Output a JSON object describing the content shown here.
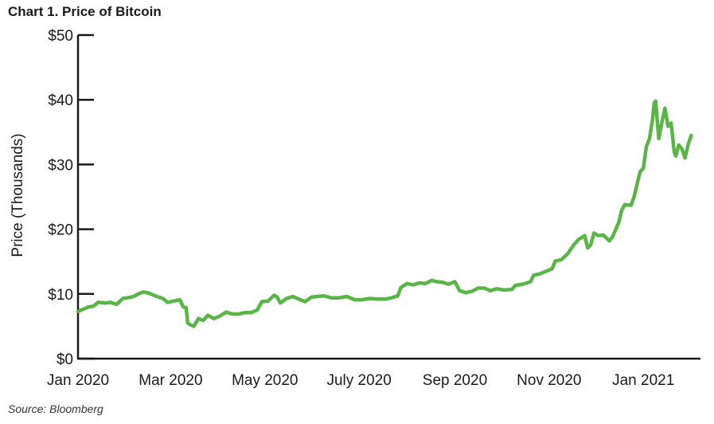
{
  "chart_data": {
    "type": "line",
    "title": "Chart 1. Price of Bitcoin",
    "ylabel": "Price (Thousands)",
    "xlabel": "",
    "source": "Source: Bloomberg",
    "ylim": [
      0,
      50
    ],
    "y_ticks": [
      {
        "value": 0,
        "label": "$0"
      },
      {
        "value": 10,
        "label": "$10"
      },
      {
        "value": 20,
        "label": "$20"
      },
      {
        "value": 30,
        "label": "$30"
      },
      {
        "value": 40,
        "label": "$40"
      },
      {
        "value": 50,
        "label": "$50"
      }
    ],
    "x_ticks": [
      {
        "value": "2020-01-01",
        "label": "Jan 2020"
      },
      {
        "value": "2020-03-01",
        "label": "Mar 2020"
      },
      {
        "value": "2020-05-01",
        "label": "May 2020"
      },
      {
        "value": "2020-07-01",
        "label": "July 2020"
      },
      {
        "value": "2020-09-01",
        "label": "Sep 2020"
      },
      {
        "value": "2020-11-01",
        "label": "Nov 2020"
      },
      {
        "value": "2021-01-01",
        "label": "Jan 2021"
      }
    ],
    "xlim": [
      "2020-01-01",
      "2021-02-07"
    ],
    "series": [
      {
        "color": "#5ab547",
        "points": [
          [
            "2020-01-01",
            7.3
          ],
          [
            "2020-01-04",
            7.6
          ],
          [
            "2020-01-08",
            8.0
          ],
          [
            "2020-01-11",
            8.1
          ],
          [
            "2020-01-14",
            8.7
          ],
          [
            "2020-01-19",
            8.6
          ],
          [
            "2020-01-22",
            8.7
          ],
          [
            "2020-01-26",
            8.4
          ],
          [
            "2020-01-30",
            9.3
          ],
          [
            "2020-02-02",
            9.4
          ],
          [
            "2020-02-06",
            9.6
          ],
          [
            "2020-02-09",
            10.0
          ],
          [
            "2020-02-12",
            10.3
          ],
          [
            "2020-02-15",
            10.2
          ],
          [
            "2020-02-18",
            9.9
          ],
          [
            "2020-02-21",
            9.6
          ],
          [
            "2020-02-25",
            9.3
          ],
          [
            "2020-02-28",
            8.7
          ],
          [
            "2020-03-03",
            8.9
          ],
          [
            "2020-03-07",
            9.1
          ],
          [
            "2020-03-09",
            8.0
          ],
          [
            "2020-03-11",
            7.9
          ],
          [
            "2020-03-12",
            5.5
          ],
          [
            "2020-03-14",
            5.2
          ],
          [
            "2020-03-16",
            5.0
          ],
          [
            "2020-03-19",
            6.2
          ],
          [
            "2020-03-22",
            5.9
          ],
          [
            "2020-03-25",
            6.7
          ],
          [
            "2020-03-29",
            6.2
          ],
          [
            "2020-04-02",
            6.6
          ],
          [
            "2020-04-06",
            7.2
          ],
          [
            "2020-04-10",
            6.9
          ],
          [
            "2020-04-14",
            6.9
          ],
          [
            "2020-04-18",
            7.1
          ],
          [
            "2020-04-22",
            7.1
          ],
          [
            "2020-04-26",
            7.5
          ],
          [
            "2020-04-29",
            8.8
          ],
          [
            "2020-05-03",
            8.9
          ],
          [
            "2020-05-07",
            9.8
          ],
          [
            "2020-05-09",
            9.5
          ],
          [
            "2020-05-11",
            8.6
          ],
          [
            "2020-05-15",
            9.3
          ],
          [
            "2020-05-19",
            9.6
          ],
          [
            "2020-05-23",
            9.2
          ],
          [
            "2020-05-27",
            8.8
          ],
          [
            "2020-05-31",
            9.5
          ],
          [
            "2020-06-04",
            9.6
          ],
          [
            "2020-06-08",
            9.7
          ],
          [
            "2020-06-13",
            9.4
          ],
          [
            "2020-06-18",
            9.4
          ],
          [
            "2020-06-23",
            9.6
          ],
          [
            "2020-06-28",
            9.1
          ],
          [
            "2020-07-03",
            9.1
          ],
          [
            "2020-07-08",
            9.3
          ],
          [
            "2020-07-13",
            9.2
          ],
          [
            "2020-07-18",
            9.2
          ],
          [
            "2020-07-22",
            9.4
          ],
          [
            "2020-07-26",
            9.7
          ],
          [
            "2020-07-28",
            11.0
          ],
          [
            "2020-08-01",
            11.6
          ],
          [
            "2020-08-05",
            11.4
          ],
          [
            "2020-08-09",
            11.7
          ],
          [
            "2020-08-13",
            11.6
          ],
          [
            "2020-08-17",
            12.1
          ],
          [
            "2020-08-20",
            11.9
          ],
          [
            "2020-08-24",
            11.8
          ],
          [
            "2020-08-28",
            11.5
          ],
          [
            "2020-09-01",
            11.9
          ],
          [
            "2020-09-04",
            10.5
          ],
          [
            "2020-09-08",
            10.2
          ],
          [
            "2020-09-12",
            10.4
          ],
          [
            "2020-09-16",
            10.9
          ],
          [
            "2020-09-20",
            10.9
          ],
          [
            "2020-09-24",
            10.5
          ],
          [
            "2020-09-28",
            10.8
          ],
          [
            "2020-10-03",
            10.6
          ],
          [
            "2020-10-08",
            10.7
          ],
          [
            "2020-10-10",
            11.3
          ],
          [
            "2020-10-15",
            11.5
          ],
          [
            "2020-10-20",
            11.9
          ],
          [
            "2020-10-22",
            12.9
          ],
          [
            "2020-10-26",
            13.1
          ],
          [
            "2020-10-30",
            13.5
          ],
          [
            "2020-11-03",
            13.9
          ],
          [
            "2020-11-05",
            15.1
          ],
          [
            "2020-11-09",
            15.3
          ],
          [
            "2020-11-13",
            16.2
          ],
          [
            "2020-11-17",
            17.6
          ],
          [
            "2020-11-20",
            18.4
          ],
          [
            "2020-11-24",
            19.0
          ],
          [
            "2020-11-26",
            17.1
          ],
          [
            "2020-11-28",
            17.6
          ],
          [
            "2020-11-30",
            19.4
          ],
          [
            "2020-12-03",
            19.0
          ],
          [
            "2020-12-06",
            19.1
          ],
          [
            "2020-12-10",
            18.2
          ],
          [
            "2020-12-12",
            18.8
          ],
          [
            "2020-12-16",
            21.0
          ],
          [
            "2020-12-18",
            22.9
          ],
          [
            "2020-12-20",
            23.8
          ],
          [
            "2020-12-24",
            23.7
          ],
          [
            "2020-12-26",
            25.0
          ],
          [
            "2020-12-28",
            27.0
          ],
          [
            "2020-12-30",
            28.9
          ],
          [
            "2021-01-01",
            29.4
          ],
          [
            "2021-01-03",
            32.8
          ],
          [
            "2021-01-05",
            34.0
          ],
          [
            "2021-01-07",
            37.0
          ],
          [
            "2021-01-08",
            39.5
          ],
          [
            "2021-01-09",
            39.8
          ],
          [
            "2021-01-11",
            34.0
          ],
          [
            "2021-01-13",
            36.5
          ],
          [
            "2021-01-15",
            38.7
          ],
          [
            "2021-01-17",
            35.9
          ],
          [
            "2021-01-19",
            36.4
          ],
          [
            "2021-01-21",
            32.0
          ],
          [
            "2021-01-22",
            31.3
          ],
          [
            "2021-01-24",
            33.0
          ],
          [
            "2021-01-26",
            32.4
          ],
          [
            "2021-01-28",
            31.0
          ],
          [
            "2021-01-30",
            33.1
          ],
          [
            "2021-02-01",
            34.5
          ]
        ]
      }
    ],
    "grid": false,
    "legend": "none"
  }
}
